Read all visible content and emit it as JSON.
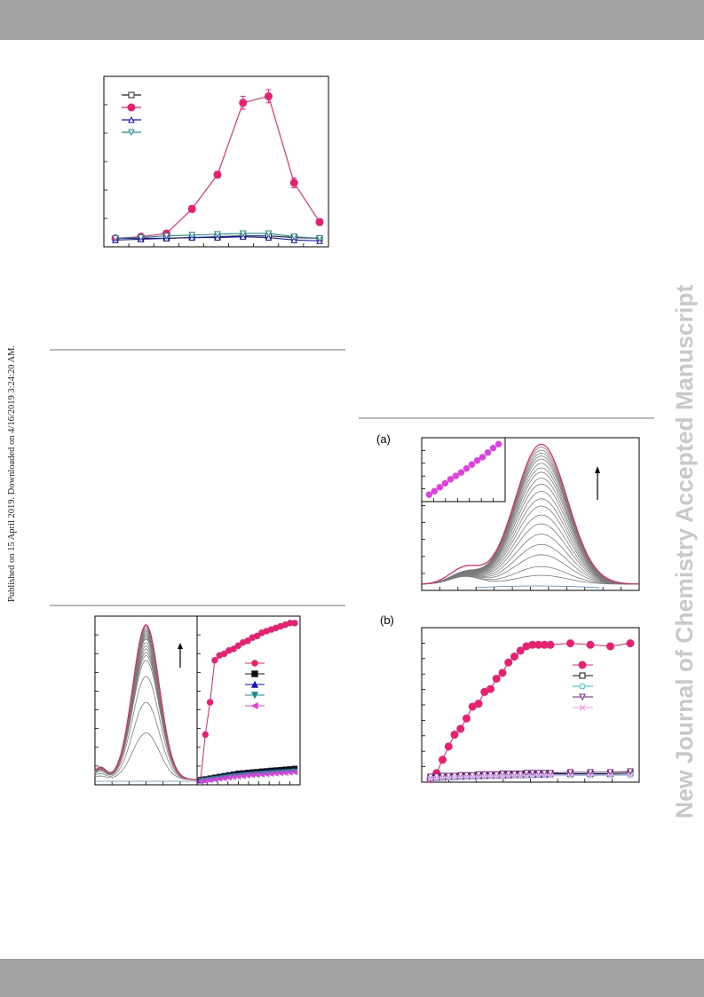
{
  "journal_watermark": "New Journal of Chemistry Accepted Manuscript",
  "publication_note": "Published on 15 April 2019. Downloaded on 4/16/2019 3:24:20 AM.",
  "panel_labels": {
    "a": "(a)",
    "b": "(b)"
  },
  "colors": {
    "pink": "#e8206f",
    "magenta": "#e040e0",
    "gray_curve": "#7a7a7a",
    "blue": "#1010d0",
    "teal": "#1a8c8c",
    "watermark": "#c9c9c9",
    "bar": "#a3a3a3"
  },
  "chart_data": [
    {
      "id": "top-left-ph-plot",
      "type": "line",
      "xlim": [
        0,
        8
      ],
      "ylim": [
        0,
        1
      ],
      "x": [
        0,
        1,
        2,
        3,
        4,
        5,
        6,
        7,
        8
      ],
      "series": [
        {
          "marker": "open-square",
          "color": "#222222",
          "values": [
            0.03,
            0.03,
            0.03,
            0.035,
            0.04,
            0.045,
            0.045,
            0.035,
            0.03
          ]
        },
        {
          "marker": "filled-circle",
          "color": "#e8206f",
          "values": [
            0.03,
            0.04,
            0.06,
            0.21,
            0.42,
            0.86,
            0.9,
            0.37,
            0.13
          ]
        },
        {
          "marker": "open-triangle",
          "color": "#1010d0",
          "values": [
            0.02,
            0.025,
            0.03,
            0.035,
            0.035,
            0.04,
            0.035,
            0.02,
            0.015
          ]
        },
        {
          "marker": "open-down-triangle",
          "color": "#1a8c8c",
          "values": [
            0.03,
            0.035,
            0.045,
            0.05,
            0.055,
            0.06,
            0.06,
            0.04,
            0.03
          ]
        }
      ],
      "error_bars": [
        0.01,
        0.01,
        0.01,
        0.02,
        0.02,
        0.04,
        0.04,
        0.03,
        0.02
      ]
    },
    {
      "id": "bottom-left-spectra",
      "type": "line",
      "xlim": [
        0,
        1
      ],
      "ylim": [
        0,
        1
      ],
      "peak_x": 0.5,
      "curve_peaks": [
        0.29,
        0.48,
        0.64,
        0.74,
        0.77,
        0.79,
        0.81,
        0.83,
        0.85,
        0.87,
        0.88,
        0.89,
        0.9,
        0.91,
        0.92,
        0.93,
        0.94,
        0.95
      ],
      "final_peak": 0.96
    },
    {
      "id": "bottom-left-titration",
      "type": "scatter",
      "xlim": [
        0,
        1
      ],
      "ylim": [
        0,
        1
      ],
      "x": [
        0,
        0.05,
        0.1,
        0.15,
        0.2,
        0.25,
        0.3,
        0.35,
        0.4,
        0.45,
        0.5,
        0.55,
        0.6,
        0.65,
        0.7,
        0.75,
        0.8,
        0.85,
        0.9,
        0.95,
        1.0
      ],
      "series": [
        {
          "marker": "filled-circle",
          "color": "#e8206f",
          "values": [
            0.02,
            0.3,
            0.5,
            0.76,
            0.79,
            0.8,
            0.82,
            0.83,
            0.85,
            0.87,
            0.88,
            0.9,
            0.91,
            0.93,
            0.94,
            0.95,
            0.96,
            0.97,
            0.98,
            0.99,
            0.99
          ]
        },
        {
          "marker": "filled-square",
          "color": "#111111",
          "values": [
            0.02,
            0.025,
            0.03,
            0.035,
            0.04,
            0.045,
            0.05,
            0.055,
            0.06,
            0.062,
            0.065,
            0.068,
            0.07,
            0.073,
            0.075,
            0.078,
            0.08,
            0.082,
            0.085,
            0.087,
            0.09
          ]
        },
        {
          "marker": "filled-triangle",
          "color": "#1010d0",
          "values": [
            0.015,
            0.02,
            0.025,
            0.03,
            0.035,
            0.04,
            0.045,
            0.05,
            0.053,
            0.056,
            0.058,
            0.06,
            0.063,
            0.065,
            0.068,
            0.07,
            0.072,
            0.074,
            0.076,
            0.078,
            0.08
          ]
        },
        {
          "marker": "filled-down-triangle",
          "color": "#1a8c8c",
          "values": [
            0.015,
            0.018,
            0.022,
            0.026,
            0.03,
            0.034,
            0.038,
            0.042,
            0.045,
            0.048,
            0.05,
            0.053,
            0.055,
            0.058,
            0.06,
            0.062,
            0.064,
            0.066,
            0.068,
            0.07,
            0.072
          ]
        },
        {
          "marker": "filled-left-triangle",
          "color": "#e040e0",
          "values": [
            0.01,
            0.014,
            0.018,
            0.022,
            0.026,
            0.03,
            0.034,
            0.037,
            0.04,
            0.043,
            0.046,
            0.049,
            0.051,
            0.053,
            0.055,
            0.057,
            0.059,
            0.061,
            0.063,
            0.065,
            0.067
          ]
        }
      ]
    },
    {
      "id": "panel-a-spectra",
      "type": "line",
      "xlim": [
        0,
        1
      ],
      "ylim": [
        0,
        1
      ],
      "peak_x": 0.55,
      "curve_peaks": [
        0.06,
        0.12,
        0.2,
        0.27,
        0.34,
        0.41,
        0.47,
        0.53,
        0.58,
        0.63,
        0.68,
        0.72,
        0.76,
        0.79,
        0.82,
        0.85,
        0.87,
        0.89,
        0.91,
        0.93
      ],
      "final_peak": 0.95
    },
    {
      "id": "panel-a-inset",
      "type": "scatter",
      "xlim": [
        0,
        1
      ],
      "ylim": [
        0,
        1
      ],
      "x": [
        0.05,
        0.12,
        0.19,
        0.26,
        0.33,
        0.4,
        0.47,
        0.54,
        0.61,
        0.68,
        0.75,
        0.82,
        0.89,
        0.96
      ],
      "values": [
        0.06,
        0.12,
        0.19,
        0.26,
        0.33,
        0.39,
        0.45,
        0.52,
        0.59,
        0.66,
        0.72,
        0.8,
        0.88,
        0.95
      ]
    },
    {
      "id": "panel-b-titration",
      "type": "scatter",
      "xlim": [
        0,
        1
      ],
      "ylim": [
        0,
        1
      ],
      "x": [
        0.0,
        0.03,
        0.06,
        0.09,
        0.12,
        0.15,
        0.18,
        0.21,
        0.24,
        0.27,
        0.3,
        0.33,
        0.36,
        0.39,
        0.42,
        0.45,
        0.48,
        0.51,
        0.54,
        0.57,
        0.6,
        0.7,
        0.8,
        0.9,
        1.0
      ],
      "series": [
        {
          "marker": "filled-circle",
          "color": "#e8206f",
          "values": [
            0.01,
            0.05,
            0.14,
            0.23,
            0.31,
            0.35,
            0.42,
            0.5,
            0.52,
            0.6,
            0.62,
            0.69,
            0.73,
            0.8,
            0.84,
            0.88,
            0.91,
            0.92,
            0.92,
            0.92,
            0.92,
            0.93,
            0.92,
            0.91,
            0.93
          ]
        },
        {
          "marker": "open-square",
          "color": "#111111",
          "values": [
            0.02,
            0.02,
            0.02,
            0.025,
            0.025,
            0.025,
            0.03,
            0.03,
            0.03,
            0.03,
            0.035,
            0.035,
            0.035,
            0.035,
            0.04,
            0.04,
            0.04,
            0.04,
            0.04,
            0.04,
            0.045,
            0.045,
            0.045,
            0.045,
            0.05
          ]
        },
        {
          "marker": "open-circle",
          "color": "#30c0c0",
          "values": [
            0.015,
            0.015,
            0.02,
            0.02,
            0.02,
            0.025,
            0.025,
            0.025,
            0.03,
            0.03,
            0.03,
            0.03,
            0.03,
            0.035,
            0.035,
            0.035,
            0.035,
            0.035,
            0.04,
            0.04,
            0.04,
            0.04,
            0.04,
            0.04,
            0.04
          ]
        },
        {
          "marker": "open-down-triangle",
          "color": "#7a1a8a",
          "values": [
            0.025,
            0.025,
            0.03,
            0.03,
            0.03,
            0.035,
            0.035,
            0.035,
            0.04,
            0.04,
            0.04,
            0.04,
            0.045,
            0.045,
            0.045,
            0.045,
            0.05,
            0.05,
            0.05,
            0.05,
            0.05,
            0.055,
            0.055,
            0.055,
            0.06
          ]
        },
        {
          "marker": "cross",
          "color": "#f09af0",
          "values": [
            0.01,
            0.012,
            0.015,
            0.015,
            0.018,
            0.02,
            0.02,
            0.022,
            0.022,
            0.025,
            0.025,
            0.025,
            0.028,
            0.028,
            0.03,
            0.03,
            0.03,
            0.03,
            0.032,
            0.032,
            0.032,
            0.033,
            0.033,
            0.034,
            0.035
          ]
        }
      ]
    }
  ]
}
